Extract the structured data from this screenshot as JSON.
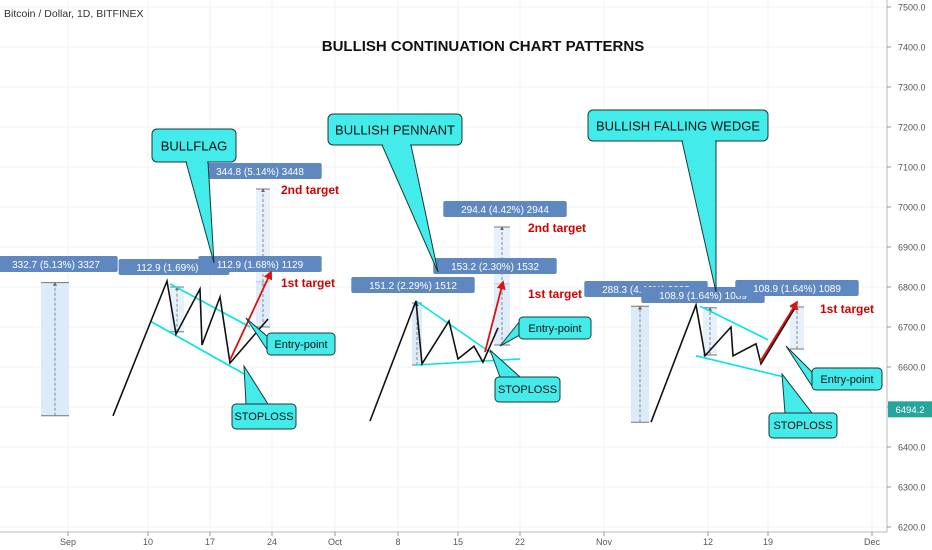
{
  "header": {
    "symbol": "Bitcoin / Dollar, 1D, BITFINEX"
  },
  "chart_data": {
    "type": "line",
    "title": "BULLISH CONTINUATION CHART PATTERNS",
    "ylim": [
      6200,
      7500
    ],
    "y_ticks": [
      "7500.0",
      "7400.0",
      "7300.0",
      "7200.0",
      "7100.0",
      "7000.0",
      "6900.0",
      "6800.0",
      "6700.0",
      "6600.0",
      "6500.0",
      "6400.0",
      "6300.0",
      "6200.0"
    ],
    "x_ticks": [
      "Sep",
      "10",
      "17",
      "24",
      "Oct",
      "8",
      "15",
      "22",
      "Nov",
      "12",
      "19",
      "Dec"
    ],
    "last_price": "6494.2",
    "patterns": [
      {
        "name": "BULLFLAG",
        "path": [
          [
            113,
            6478
          ],
          [
            167,
            6815
          ],
          [
            176,
            6682
          ],
          [
            200,
            6795
          ],
          [
            202,
            6655
          ],
          [
            220,
            6775
          ],
          [
            230,
            6610
          ],
          [
            268,
            6720
          ]
        ],
        "top_line": [
          [
            170,
            6808
          ],
          [
            250,
            6700
          ]
        ],
        "bottom_line": [
          [
            150,
            6715
          ],
          [
            246,
            6580
          ]
        ],
        "pole": {
          "x": 55,
          "y_from": 6478,
          "y_to": 6811,
          "label": "332.7 (5.13%) 3327"
        },
        "target_bars": [
          {
            "x": 177,
            "y_from": 6688,
            "y_to": 6800,
            "label": "112.9 (1.69%) 11"
          },
          {
            "x": 263,
            "y_from": 6700,
            "y_to": 6813,
            "label": "112.9 (1.68%) 1129"
          },
          {
            "x": 263,
            "y_from": 6700,
            "y_to": 7045,
            "label": "344.8 (5.14%) 3448"
          }
        ],
        "callout": "BULLFLAG",
        "labels": {
          "target2": "2nd target",
          "target1": "1st target",
          "entry": "Entry-point",
          "stop": "STOPLOSS"
        }
      },
      {
        "name": "BULLISH PENNANT",
        "path": [
          [
            370,
            6465
          ],
          [
            416,
            6765
          ],
          [
            422,
            6608
          ],
          [
            449,
            6715
          ],
          [
            458,
            6620
          ],
          [
            474,
            6652
          ],
          [
            483,
            6612
          ],
          [
            498,
            6698
          ]
        ],
        "top_line": [
          [
            416,
            6765
          ],
          [
            497,
            6625
          ]
        ],
        "bottom_line": [
          [
            416,
            6605
          ],
          [
            520,
            6620
          ]
        ],
        "pole": {
          "x": 417,
          "y_from": 6605,
          "y_to": 6760,
          "label": "151.2 (2.29%) 1512"
        },
        "target_bars": [
          {
            "x": 502,
            "y_from": 6655,
            "y_to": 6808,
            "label": "153.2 (2.30%) 1532"
          },
          {
            "x": 502,
            "y_from": 6655,
            "y_to": 6950,
            "label": "294.4 (4.42%) 2944"
          }
        ],
        "callout": "BULLISH PENNANT",
        "labels": {
          "target2": "2nd target",
          "target1": "1st target",
          "entry": "Entry-point",
          "stop": "STOPLOSS"
        }
      },
      {
        "name": "BULLISH FALLING WEDGE",
        "path": [
          [
            651,
            6462
          ],
          [
            696,
            6755
          ],
          [
            705,
            6628
          ],
          [
            731,
            6700
          ],
          [
            733,
            6628
          ],
          [
            756,
            6658
          ],
          [
            761,
            6608
          ],
          [
            796,
            6752
          ]
        ],
        "top_line": [
          [
            700,
            6752
          ],
          [
            768,
            6668
          ]
        ],
        "bottom_line": [
          [
            696,
            6628
          ],
          [
            784,
            6575
          ]
        ],
        "pole": {
          "x": 640,
          "y_from": 6462,
          "y_to": 6752,
          "label": "288.3 (4.46%) 2883"
        },
        "target_bars": [
          {
            "x": 710,
            "y_from": 6630,
            "y_to": 6748,
            "label": "108.9 (1.64%) 1089"
          },
          {
            "x": 797,
            "y_from": 6645,
            "y_to": 6750,
            "label": "108.9 (1.64%) 1089"
          }
        ],
        "callout": "BULLISH FALLING WEDGE",
        "labels": {
          "target1": "1st target",
          "entry": "Entry-point",
          "stop": "STOPLOSS"
        }
      }
    ]
  },
  "colors": {
    "callout_fill": "#43ebeb",
    "callout_stroke": "#1b3a3a",
    "wedge_line": "#00e5e5",
    "target_arrow": "#e01010",
    "target_text": "#d40000",
    "measure_label": "#5f87c0",
    "pole_fill": "#dcebfa",
    "last_price_bg": "#26a69a"
  }
}
